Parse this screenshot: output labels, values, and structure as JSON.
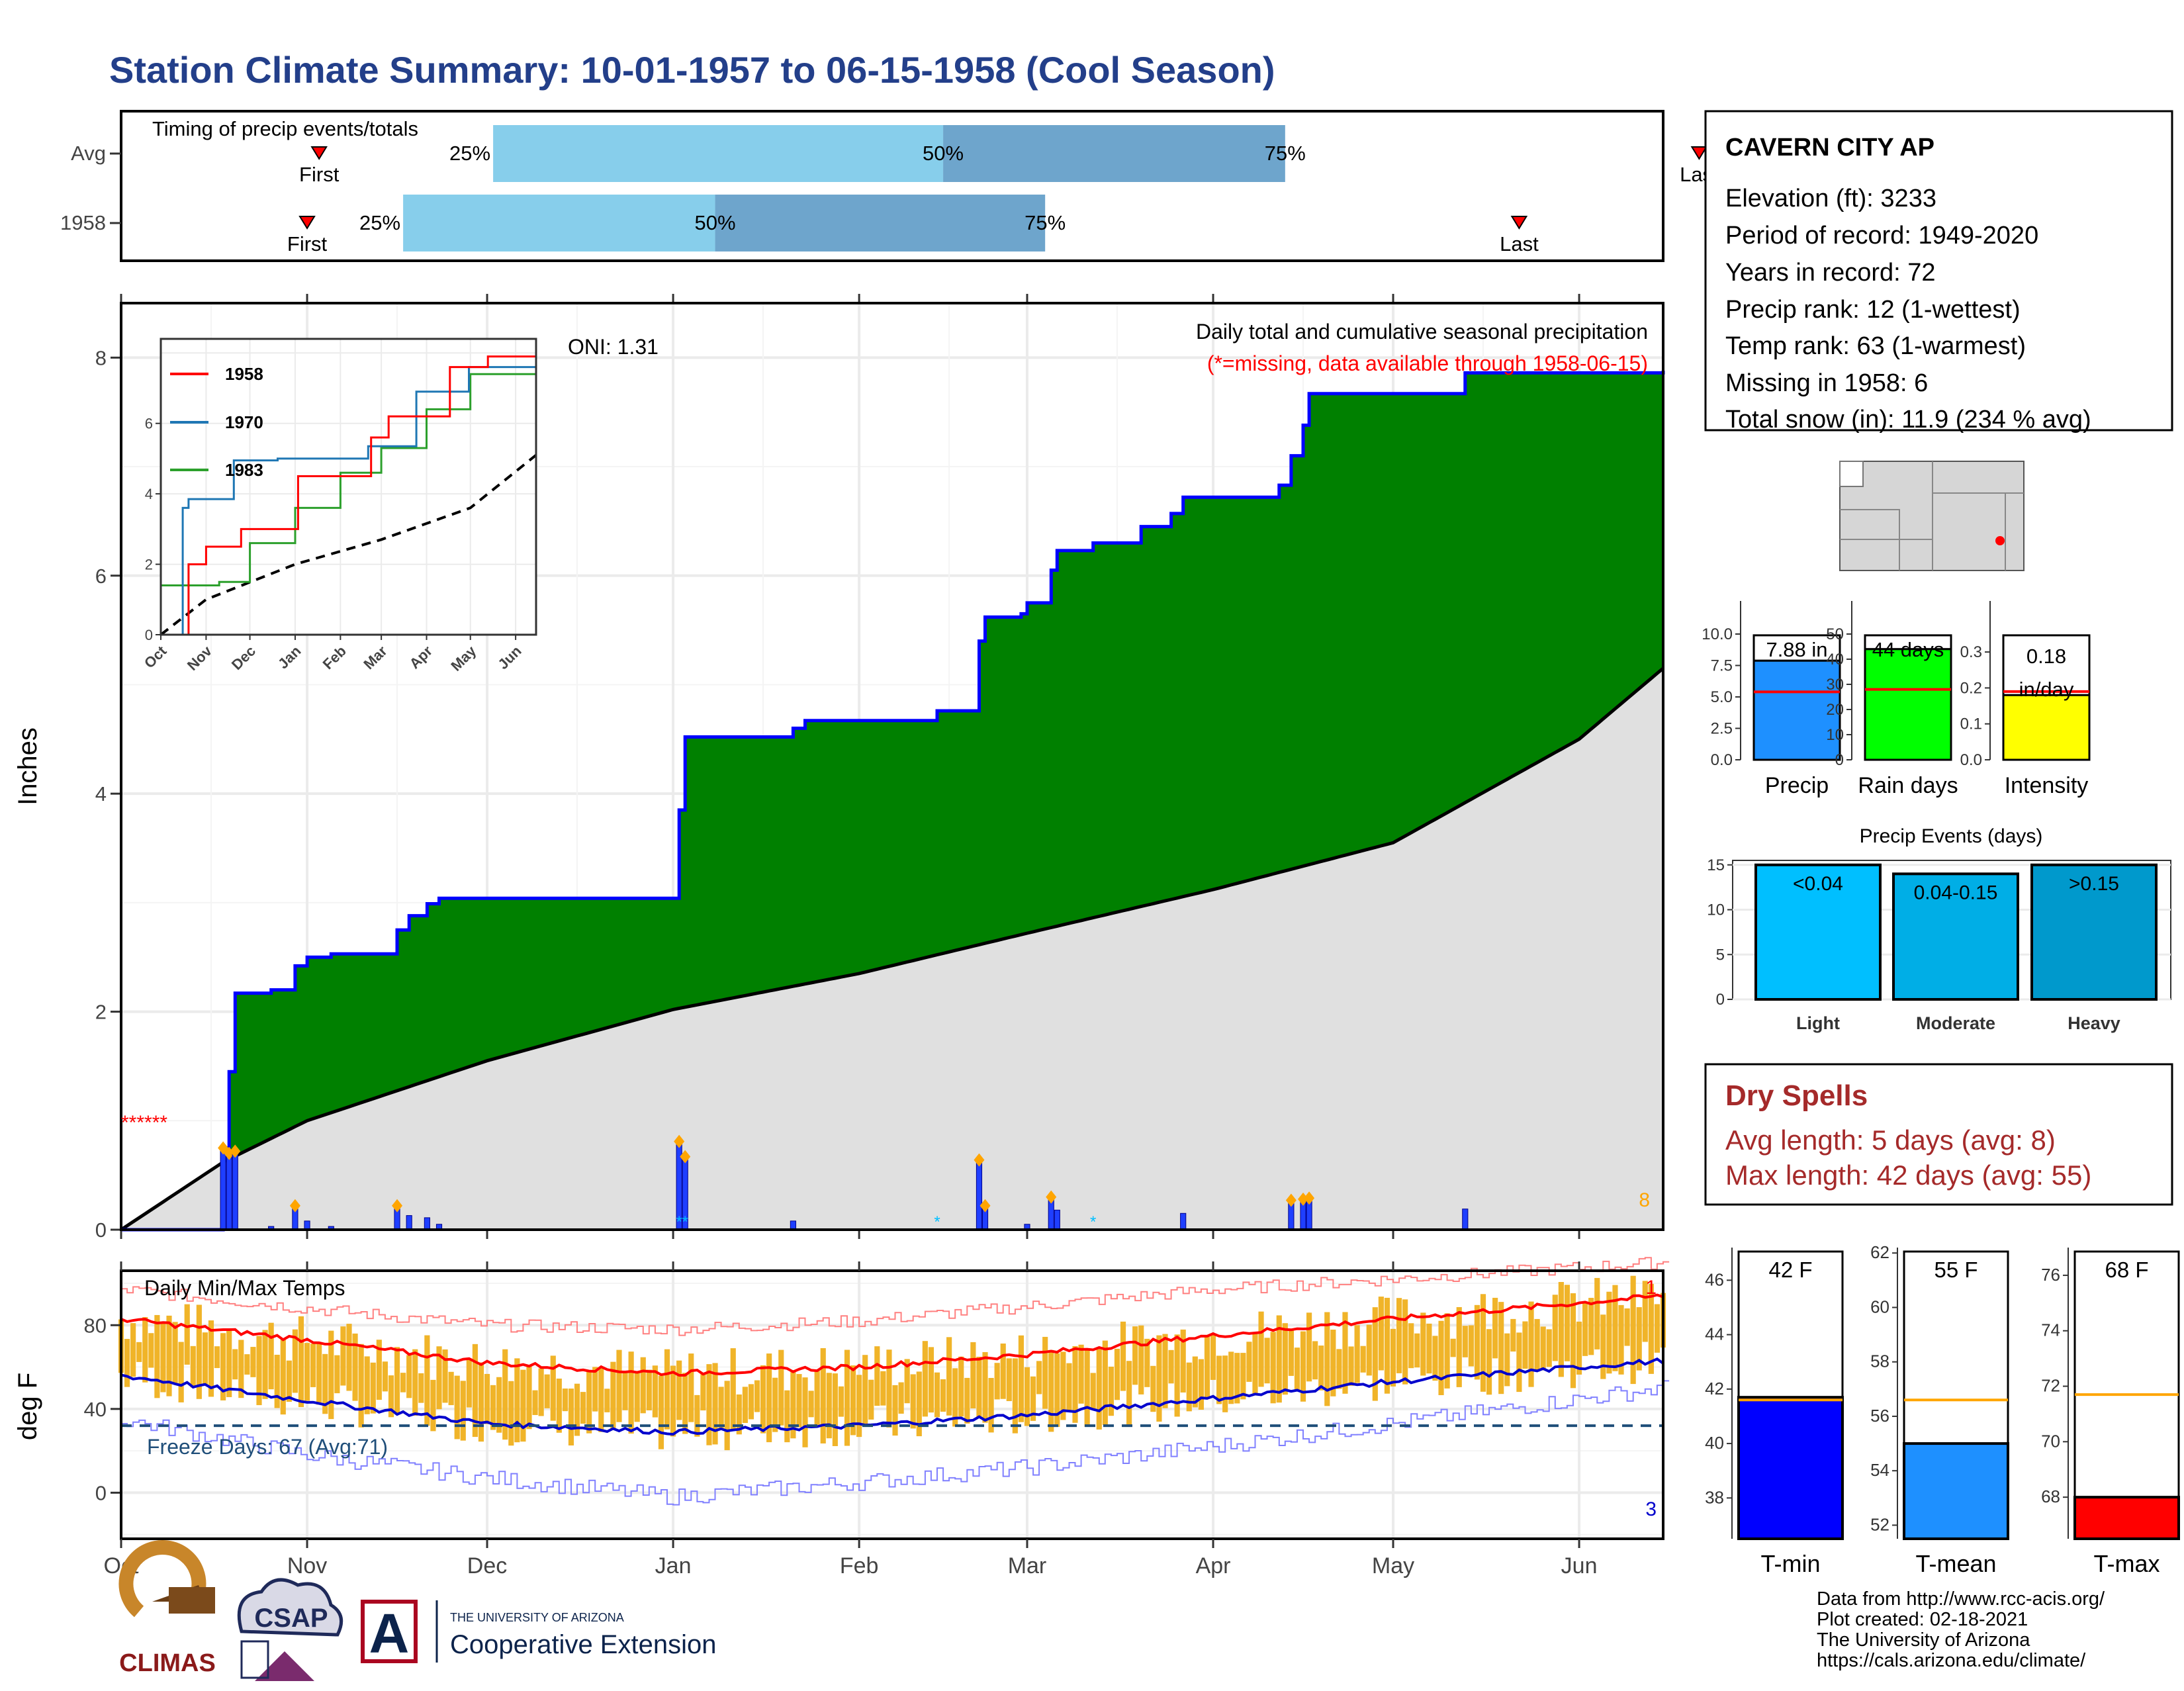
{
  "title": "Station Climate Summary: 10-01-1957 to 06-15-1958 (Cool Season)",
  "colors": {
    "title": "#233f8a",
    "precip_fill": "#008000",
    "precip_line": "#0000ff",
    "normal_fill": "#e0e0e0",
    "prior_fill": "#7a4f0f",
    "bar_blue": "#1f3fff",
    "marker_orange": "#ffa500",
    "quartile_light": "#87ceeb",
    "quartile_dark": "#6ea5cc",
    "temp_bar": "#f0b429",
    "tmax_line": "#ff0000",
    "tmin_line": "#0000cc",
    "freeze_line": "#1f4e79",
    "dry_red": "#a52a2a",
    "missing_red": "#ff0000"
  },
  "timing_panel": {
    "title": "Timing of precip events/totals",
    "rows": [
      {
        "label": "Avg",
        "first_label": "First",
        "last_label": "Last",
        "first_date": "1957-11-03",
        "last_date": "1958-06-21",
        "q25": "1957-12-02",
        "q50": "1958-02-15",
        "q75": "1958-04-13"
      },
      {
        "label": "1958",
        "first_label": "First",
        "last_label": "Last",
        "first_date": "1957-11-01",
        "last_date": "1958-05-22",
        "q25": "1957-11-17",
        "q50": "1958-01-08",
        "q75": "1958-03-04"
      }
    ],
    "q_labels": [
      "25%",
      "50%",
      "75%"
    ]
  },
  "oni_label": "ONI: 1.31",
  "precip_panel": {
    "title": "Daily total and cumulative seasonal precipitation",
    "note": "(*=missing, data available through 1958-06-15)",
    "ylabel": "Inches",
    "ylim": [
      0,
      8.5
    ],
    "yticks": [
      "0",
      "2",
      "4",
      "6",
      "8"
    ],
    "count_label": "8",
    "missing_marks": "******"
  },
  "inset_panel": {
    "legend": [
      "1958",
      "1970",
      "1983"
    ],
    "yticks": [
      "0",
      "2",
      "4",
      "6"
    ],
    "xticks": [
      "Oct",
      "Nov",
      "Dec",
      "Jan",
      "Feb",
      "Mar",
      "Apr",
      "May",
      "Jun"
    ]
  },
  "temp_panel": {
    "title": "Daily Min/Max Temps",
    "ylabel": "deg F",
    "yticks": [
      "0",
      "40",
      "80"
    ],
    "freeze_label": "Freeze Days: 67 (Avg:71)",
    "freeze_temp": 32,
    "record_high_count": "1",
    "record_low_count": "3"
  },
  "month_ticks": [
    "Oct",
    "Nov",
    "Dec",
    "Jan",
    "Feb",
    "Mar",
    "Apr",
    "May",
    "Jun"
  ],
  "station": {
    "name": "CAVERN CITY AP",
    "lines": [
      "Elevation (ft): 3233",
      "Period of record: 1949-2020",
      "Years in record: 72",
      "Precip rank: 12 (1-wettest)",
      "Temp rank: 63 (1-warmest)",
      "Missing in 1958: 6",
      "Total snow (in): 11.9 (234 % avg)"
    ]
  },
  "summary_bars": [
    {
      "label": "Precip",
      "value_label": "7.88 in",
      "value": 7.88,
      "avg": 5.4,
      "ymax": 10.0,
      "ticks": [
        "0.0",
        "2.5",
        "5.0",
        "7.5",
        "10.0"
      ],
      "color": "#1e90ff"
    },
    {
      "label": "Rain days",
      "value_label": "44 days",
      "value": 44,
      "avg": 28,
      "ymax": 50,
      "ticks": [
        "0",
        "10",
        "20",
        "30",
        "40",
        "50"
      ],
      "color": "#00ff00"
    },
    {
      "label": "Intensity",
      "value_label": "0.18 in/day",
      "value_line1": "0.18",
      "value_line2": "in/day",
      "value": 0.18,
      "avg": 0.19,
      "ymax": 0.35,
      "ticks": [
        "0.0",
        "0.1",
        "0.2",
        "0.3"
      ],
      "color": "#ffff00"
    }
  ],
  "precip_events": {
    "title": "Precip Events (days)",
    "ticks": [
      "0",
      "5",
      "10",
      "15"
    ],
    "bars": [
      {
        "label": "Light",
        "range": "<0.04",
        "value": 15,
        "color": "#00bfff"
      },
      {
        "label": "Moderate",
        "range": "0.04-0.15",
        "value": 14,
        "color": "#00aee6"
      },
      {
        "label": "Heavy",
        "range": ">0.15",
        "value": 15,
        "color": "#0099cc"
      }
    ]
  },
  "dry_spells": {
    "title": "Dry Spells",
    "avg_line": "Avg length: 5 days (avg: 8)",
    "max_line": "Max length: 42 days (avg: 55)"
  },
  "temp_bars": [
    {
      "label": "T-min",
      "value_label": "42 F",
      "value": 41.7,
      "avg": 41.6,
      "ymin": 36.5,
      "ymax": 47.2,
      "ticks": [
        "38",
        "40",
        "42",
        "44",
        "46"
      ],
      "color": "#0000ff"
    },
    {
      "label": "T-mean",
      "value_label": "55 F",
      "value": 55.0,
      "avg": 56.6,
      "ymin": 51.5,
      "ymax": 62.2,
      "ticks": [
        "52",
        "54",
        "56",
        "58",
        "60",
        "62"
      ],
      "color": "#1e90ff"
    },
    {
      "label": "T-max",
      "value_label": "68 F",
      "value": 68.0,
      "avg": 71.7,
      "ymin": 66.5,
      "ymax": 77.0,
      "ticks": [
        "68",
        "70",
        "72",
        "74",
        "76"
      ],
      "color": "#ff0000"
    }
  ],
  "credits": {
    "line1": "Data from http://www.rcc-acis.org/",
    "line2": "Plot created: 02-18-2021",
    "line3": "The University of Arizona",
    "line4": "https://cals.arizona.edu/climate/"
  },
  "logos": {
    "climas": "CLIMAS",
    "csap": "CSAP",
    "ua_small": "THE UNIVERSITY OF ARIZONA",
    "ua_big": "Cooperative Extension",
    "ua_mark": "A"
  },
  "chart_data": [
    {
      "type": "area",
      "title": "Daily total and cumulative seasonal precipitation",
      "ylabel": "Inches",
      "ylim": [
        0,
        8.5
      ],
      "cumulative_1958": [
        [
          "1957-10-01",
          0.0
        ],
        [
          "1957-10-18",
          0.75
        ],
        [
          "1957-10-19",
          1.45
        ],
        [
          "1957-10-20",
          2.17
        ],
        [
          "1957-10-26",
          2.2
        ],
        [
          "1957-10-30",
          2.42
        ],
        [
          "1957-11-01",
          2.5
        ],
        [
          "1957-11-05",
          2.53
        ],
        [
          "1957-11-15",
          2.53
        ],
        [
          "1957-11-16",
          2.75
        ],
        [
          "1957-11-18",
          2.88
        ],
        [
          "1957-11-21",
          2.99
        ],
        [
          "1957-11-23",
          3.04
        ],
        [
          "1958-01-01",
          3.04
        ],
        [
          "1958-01-02",
          3.85
        ],
        [
          "1958-01-03",
          4.52
        ],
        [
          "1958-01-20",
          4.52
        ],
        [
          "1958-01-21",
          4.6
        ],
        [
          "1958-01-23",
          4.67
        ],
        [
          "1958-02-10",
          4.67
        ],
        [
          "1958-02-14",
          4.76
        ],
        [
          "1958-02-20",
          4.76
        ],
        [
          "1958-02-21",
          5.4
        ],
        [
          "1958-02-22",
          5.62
        ],
        [
          "1958-02-28",
          5.65
        ],
        [
          "1958-03-01",
          5.75
        ],
        [
          "1958-03-05",
          6.05
        ],
        [
          "1958-03-06",
          6.23
        ],
        [
          "1958-03-12",
          6.3
        ],
        [
          "1958-03-20",
          6.45
        ],
        [
          "1958-03-25",
          6.57
        ],
        [
          "1958-03-27",
          6.72
        ],
        [
          "1958-04-12",
          6.83
        ],
        [
          "1958-04-14",
          7.1
        ],
        [
          "1958-04-16",
          7.38
        ],
        [
          "1958-04-17",
          7.67
        ],
        [
          "1958-05-12",
          7.67
        ],
        [
          "1958-05-13",
          7.86
        ],
        [
          "1958-06-15",
          7.88
        ]
      ],
      "normal_cumulative": [
        [
          "1957-10-01",
          0.0
        ],
        [
          "1957-10-18",
          0.62
        ],
        [
          "1957-11-01",
          1.0
        ],
        [
          "1957-12-01",
          1.55
        ],
        [
          "1958-01-01",
          2.02
        ],
        [
          "1958-02-01",
          2.35
        ],
        [
          "1958-03-01",
          2.72
        ],
        [
          "1958-04-01",
          3.12
        ],
        [
          "1958-05-01",
          3.55
        ],
        [
          "1958-06-01",
          4.5
        ],
        [
          "1958-06-15",
          5.15
        ]
      ],
      "daily_precip": [
        [
          "1957-10-18",
          0.75
        ],
        [
          "1957-10-19",
          0.7
        ],
        [
          "1957-10-20",
          0.72
        ],
        [
          "1957-10-26",
          0.03
        ],
        [
          "1957-10-30",
          0.22
        ],
        [
          "1957-11-01",
          0.08
        ],
        [
          "1957-11-05",
          0.03
        ],
        [
          "1957-11-16",
          0.22
        ],
        [
          "1957-11-18",
          0.13
        ],
        [
          "1957-11-21",
          0.11
        ],
        [
          "1957-11-23",
          0.05
        ],
        [
          "1958-01-02",
          0.81
        ],
        [
          "1958-01-03",
          0.67
        ],
        [
          "1958-01-21",
          0.08
        ],
        [
          "1958-02-21",
          0.64
        ],
        [
          "1958-02-22",
          0.22
        ],
        [
          "1958-03-01",
          0.05
        ],
        [
          "1958-03-05",
          0.3
        ],
        [
          "1958-03-06",
          0.18
        ],
        [
          "1958-03-27",
          0.15
        ],
        [
          "1958-04-14",
          0.27
        ],
        [
          "1958-04-16",
          0.28
        ],
        [
          "1958-04-17",
          0.29
        ],
        [
          "1958-05-13",
          0.19
        ]
      ],
      "snow_days": [
        "1958-01-02",
        "1958-01-03",
        "1958-02-14",
        "1958-03-12"
      ],
      "prior_seasons": {
        "1958": [
          [
            "1957-10-01",
            0
          ],
          [
            "1957-10-20",
            2.0
          ],
          [
            "1957-11-01",
            2.5
          ],
          [
            "1957-11-25",
            3.0
          ],
          [
            "1958-01-03",
            4.5
          ],
          [
            "1958-02-22",
            5.6
          ],
          [
            "1958-03-06",
            6.2
          ],
          [
            "1958-04-17",
            7.6
          ],
          [
            "1958-05-13",
            7.9
          ],
          [
            "1958-06-15",
            7.9
          ]
        ],
        "1970": [
          [
            "1957-10-01",
            0
          ],
          [
            "1957-10-16",
            3.6
          ],
          [
            "1957-10-20",
            3.85
          ],
          [
            "1957-11-20",
            4.95
          ],
          [
            "1957-12-20",
            5.0
          ],
          [
            "1958-02-20",
            5.35
          ],
          [
            "1958-03-25",
            6.9
          ],
          [
            "1958-04-30",
            7.6
          ],
          [
            "1958-06-15",
            7.75
          ]
        ],
        "1983": [
          [
            "1957-10-01",
            1.4
          ],
          [
            "1957-11-10",
            1.5
          ],
          [
            "1957-12-01",
            2.6
          ],
          [
            "1958-01-01",
            3.6
          ],
          [
            "1958-02-01",
            4.6
          ],
          [
            "1958-03-01",
            5.3
          ],
          [
            "1958-04-01",
            6.4
          ],
          [
            "1958-05-01",
            7.4
          ],
          [
            "1958-06-15",
            7.6
          ]
        ],
        "average": [
          [
            "1957-10-01",
            0
          ],
          [
            "1957-11-01",
            1.0
          ],
          [
            "1958-01-01",
            2.0
          ],
          [
            "1958-03-01",
            2.7
          ],
          [
            "1958-05-01",
            3.6
          ],
          [
            "1958-06-15",
            5.1
          ]
        ]
      }
    },
    {
      "type": "line",
      "title": "Daily Min/Max Temps",
      "ylabel": "deg F",
      "ylim": [
        -22,
        106
      ],
      "avg_tmax": [
        [
          "1957-10-01",
          83
        ],
        [
          "1957-11-01",
          73
        ],
        [
          "1957-12-01",
          62
        ],
        [
          "1958-01-01",
          57
        ],
        [
          "1958-02-01",
          60
        ],
        [
          "1958-03-01",
          66
        ],
        [
          "1958-04-01",
          75
        ],
        [
          "1958-05-01",
          83
        ],
        [
          "1958-06-15",
          94
        ]
      ],
      "avg_tmin": [
        [
          "1957-10-01",
          56
        ],
        [
          "1957-11-01",
          44
        ],
        [
          "1957-12-01",
          33
        ],
        [
          "1958-01-01",
          29
        ],
        [
          "1958-02-01",
          32
        ],
        [
          "1958-03-01",
          37
        ],
        [
          "1958-04-01",
          45
        ],
        [
          "1958-05-01",
          53
        ],
        [
          "1958-06-15",
          63
        ]
      ],
      "record_high": [
        [
          "1957-10-01",
          97
        ],
        [
          "1957-11-01",
          88
        ],
        [
          "1957-12-01",
          80
        ],
        [
          "1958-01-01",
          78
        ],
        [
          "1958-02-01",
          82
        ],
        [
          "1958-03-01",
          89
        ],
        [
          "1958-04-01",
          97
        ],
        [
          "1958-05-01",
          102
        ],
        [
          "1958-06-15",
          110
        ]
      ],
      "record_low": [
        [
          "1957-10-01",
          35
        ],
        [
          "1957-11-01",
          18
        ],
        [
          "1957-12-01",
          7
        ],
        [
          "1958-01-01",
          -2
        ],
        [
          "1958-02-01",
          5
        ],
        [
          "1958-03-01",
          12
        ],
        [
          "1958-04-01",
          22
        ],
        [
          "1958-05-01",
          33
        ],
        [
          "1958-06-15",
          50
        ]
      ],
      "freeze_line": 32
    },
    {
      "type": "bar",
      "categories": [
        "Light",
        "Moderate",
        "Heavy"
      ],
      "values": [
        15,
        14,
        15
      ],
      "title": "Precip Events (days)"
    }
  ]
}
